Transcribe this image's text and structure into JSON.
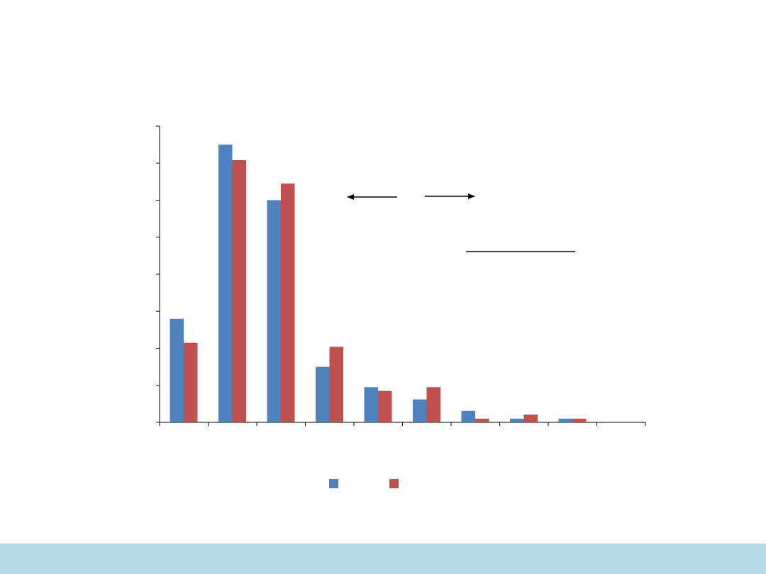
{
  "theme": {
    "footer_color": "#b7dde8",
    "series_colors": [
      "#4f81bd",
      "#c0504d"
    ]
  },
  "chart_data": {
    "type": "bar",
    "title": "",
    "xlabel": "",
    "ylabel": "",
    "categories": [
      "",
      "",
      "",
      "",
      "",
      "",
      "",
      "",
      "",
      ""
    ],
    "series": [
      {
        "values": [
          28,
          75,
          60,
          15,
          9.5,
          6.2,
          3.1,
          1.0,
          1.0,
          0
        ]
      },
      {
        "values": [
          21.5,
          70.8,
          64.5,
          20.4,
          8.5,
          9.5,
          1.0,
          2.1,
          1.0,
          0
        ]
      }
    ],
    "ylim": [
      0,
      80
    ],
    "y_major_step": 10,
    "grid": false,
    "legend": "bottom",
    "annotations": [
      {
        "kind": "arrow",
        "direction": "left"
      },
      {
        "kind": "arrow",
        "direction": "right"
      },
      {
        "kind": "line"
      }
    ]
  }
}
